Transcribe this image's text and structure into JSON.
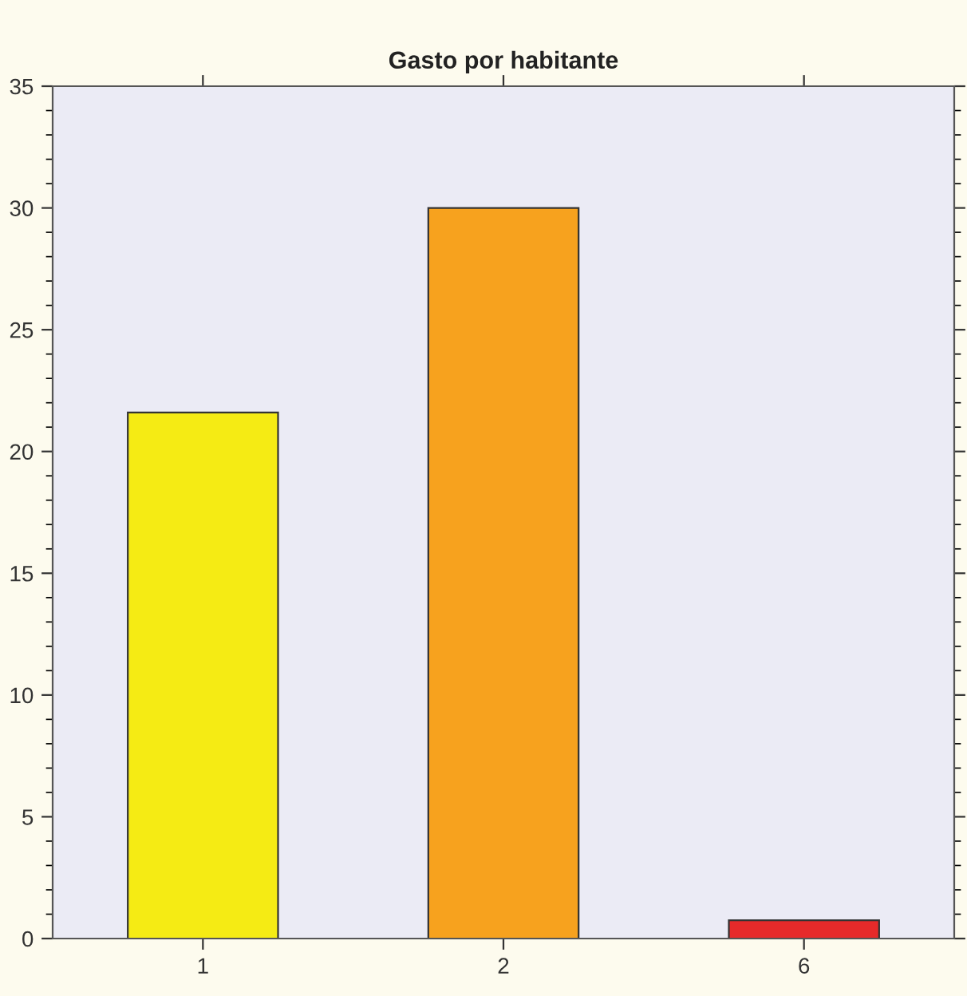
{
  "chart_data": {
    "type": "bar",
    "title": "Gasto por habitante",
    "categories": [
      "1",
      "2",
      "6"
    ],
    "values": [
      21.6,
      30.0,
      0.75
    ],
    "colors": [
      "#f5eb14",
      "#f7a21e",
      "#e62a2a"
    ],
    "ylim": [
      0,
      35
    ],
    "yticks": [
      0,
      5,
      10,
      15,
      20,
      25,
      30,
      35
    ],
    "grid": false,
    "legend": false
  }
}
